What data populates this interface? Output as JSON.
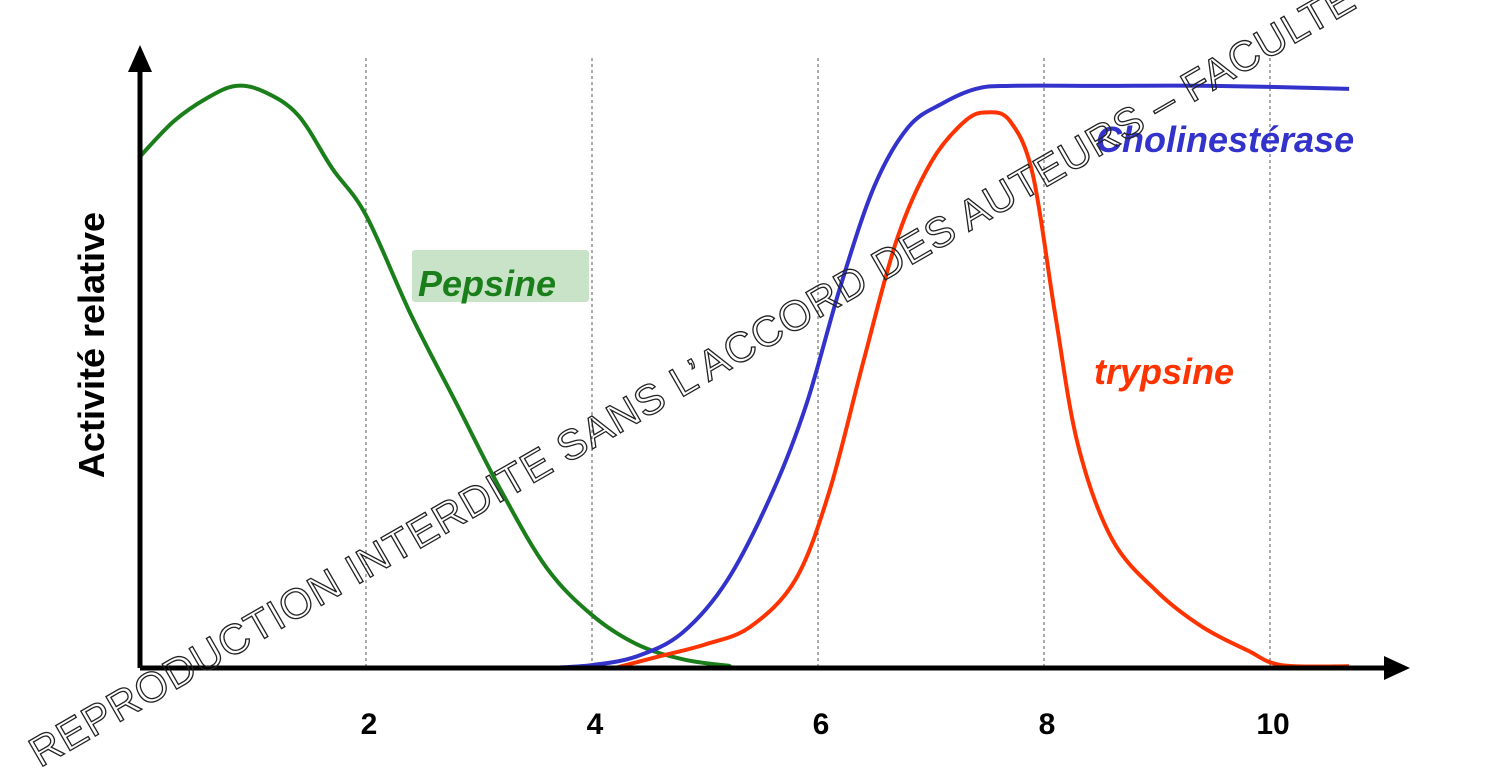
{
  "chart_data": {
    "type": "line",
    "title": "",
    "xlabel": "",
    "ylabel": "Activité relative",
    "xlim": [
      0,
      11
    ],
    "ylim": [
      0,
      1
    ],
    "x_ticks": [
      "2",
      "4",
      "6",
      "8",
      "10"
    ],
    "grid": "vertical dashed lines at x = 2, 4, 6, 8, 10",
    "series": [
      {
        "name": "Pepsine",
        "color": "#1a7f1a",
        "label_bg": "#c9e3c9",
        "points": [
          [
            0,
            0.87
          ],
          [
            0.3,
            0.93
          ],
          [
            0.6,
            0.97
          ],
          [
            0.85,
            0.99
          ],
          [
            1.1,
            0.98
          ],
          [
            1.4,
            0.94
          ],
          [
            1.7,
            0.85
          ],
          [
            2.0,
            0.77
          ],
          [
            2.4,
            0.6
          ],
          [
            2.8,
            0.45
          ],
          [
            3.2,
            0.3
          ],
          [
            3.6,
            0.17
          ],
          [
            4.0,
            0.09
          ],
          [
            4.4,
            0.04
          ],
          [
            4.8,
            0.015
          ],
          [
            5.2,
            0.004
          ],
          [
            5.6,
            0
          ],
          [
            10.7,
            0
          ]
        ]
      },
      {
        "name": "Cholinestérase",
        "color": "#3333cc",
        "points": [
          [
            3.6,
            0
          ],
          [
            4.0,
            0.005
          ],
          [
            4.4,
            0.02
          ],
          [
            4.8,
            0.06
          ],
          [
            5.2,
            0.15
          ],
          [
            5.6,
            0.3
          ],
          [
            5.9,
            0.45
          ],
          [
            6.2,
            0.65
          ],
          [
            6.5,
            0.82
          ],
          [
            6.8,
            0.92
          ],
          [
            7.1,
            0.96
          ],
          [
            7.4,
            0.985
          ],
          [
            7.7,
            0.99
          ],
          [
            8.5,
            0.99
          ],
          [
            9.5,
            0.99
          ],
          [
            10.7,
            0.985
          ]
        ]
      },
      {
        "name": "trypsine",
        "color": "#ff3300",
        "points": [
          [
            4.2,
            0
          ],
          [
            4.6,
            0.02
          ],
          [
            5.0,
            0.04
          ],
          [
            5.4,
            0.07
          ],
          [
            5.8,
            0.15
          ],
          [
            6.1,
            0.3
          ],
          [
            6.4,
            0.52
          ],
          [
            6.7,
            0.73
          ],
          [
            7.0,
            0.86
          ],
          [
            7.3,
            0.93
          ],
          [
            7.5,
            0.945
          ],
          [
            7.7,
            0.93
          ],
          [
            7.9,
            0.84
          ],
          [
            8.1,
            0.6
          ],
          [
            8.3,
            0.38
          ],
          [
            8.6,
            0.22
          ],
          [
            9.0,
            0.13
          ],
          [
            9.4,
            0.07
          ],
          [
            9.8,
            0.03
          ],
          [
            10.1,
            0.005
          ],
          [
            10.7,
            0.003
          ]
        ]
      }
    ]
  },
  "watermark": "REPRODUCTION INTERDITE SANS L’ACCORD DES AUTEURS – FACULTÉ"
}
